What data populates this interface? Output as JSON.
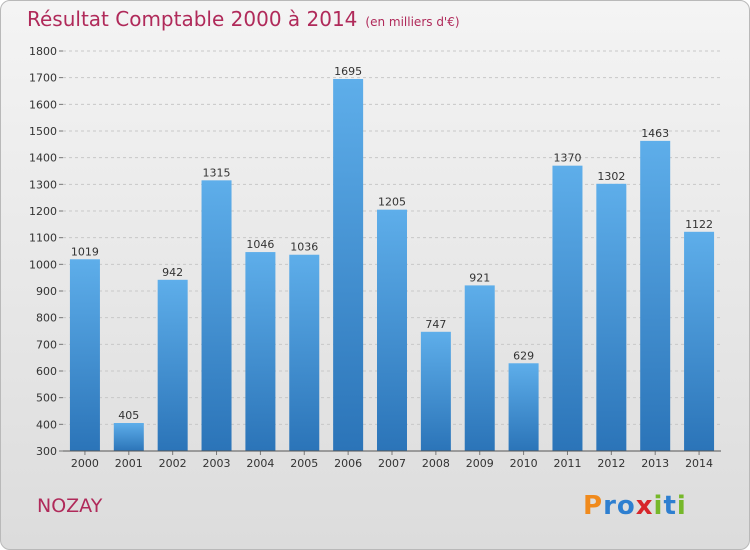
{
  "chart_data": {
    "type": "bar",
    "title": "Résultat Comptable 2000 à 2014",
    "subtitle": "(en milliers d'€)",
    "categories": [
      "2000",
      "2001",
      "2002",
      "2003",
      "2004",
      "2005",
      "2006",
      "2007",
      "2008",
      "2009",
      "2010",
      "2011",
      "2012",
      "2013",
      "2014"
    ],
    "values": [
      1019,
      405,
      942,
      1315,
      1046,
      1036,
      1695,
      1205,
      747,
      921,
      629,
      1370,
      1302,
      1463,
      1122
    ],
    "ylim": [
      300,
      1800
    ],
    "yticks": [
      300,
      400,
      500,
      600,
      700,
      800,
      900,
      1000,
      1100,
      1200,
      1300,
      1400,
      1500,
      1600,
      1700,
      1800
    ],
    "grid": true,
    "bar_color": "#3d8fd4"
  },
  "place": "NOZAY",
  "logo": {
    "text": "Proxiti",
    "letters": [
      "P",
      "r",
      "o",
      "x",
      "i",
      "t",
      "i"
    ],
    "colors": [
      "#f08a1c",
      "#2e7fd0",
      "#2e7fd0",
      "#d7262b",
      "#76b82a",
      "#2e7fd0",
      "#76b82a"
    ]
  }
}
